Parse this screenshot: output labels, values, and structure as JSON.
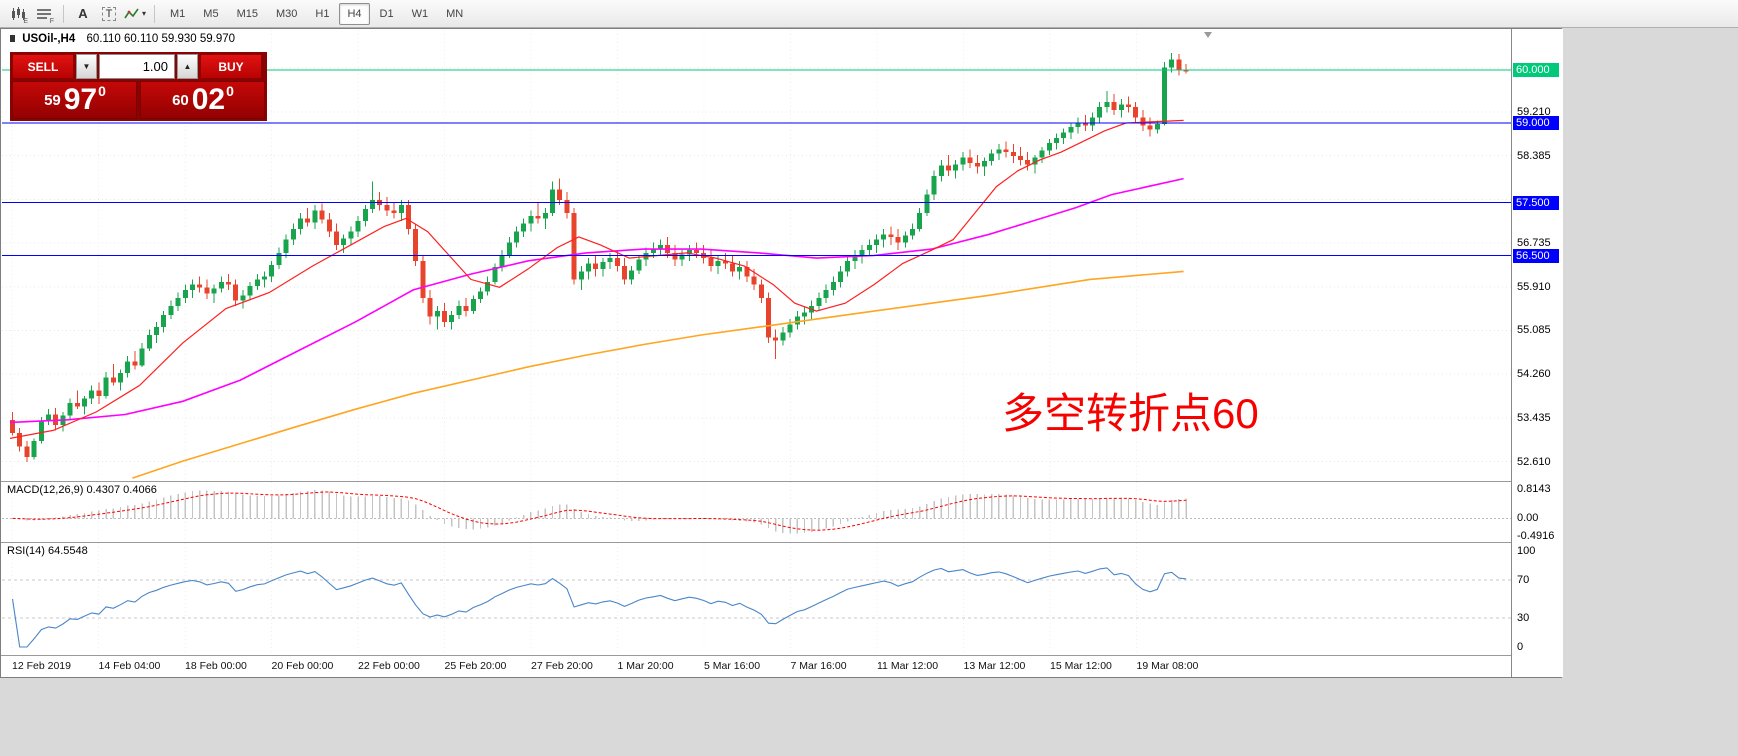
{
  "toolbar": {
    "tools": {
      "expert_label": "E",
      "indicator_label": "F",
      "text_label": "A",
      "textbox_label": "T"
    },
    "icons": {
      "dropdown": "▾",
      "volume_down": "▼",
      "volume_up": "▲"
    },
    "timeframes": [
      "M1",
      "M5",
      "M15",
      "M30",
      "H1",
      "H4",
      "D1",
      "W1",
      "MN"
    ],
    "active_timeframe": "H4"
  },
  "chart": {
    "symbol_header": "USOil-,H4",
    "ohlc_header": "60.110 60.110 59.930 59.970",
    "annotation": "多空转折点60",
    "levels": [
      {
        "label": "60.000",
        "price": 60.0,
        "color": "#00c97a"
      },
      {
        "label": "59.000",
        "price": 59.0,
        "color": "#0000ff"
      },
      {
        "label": "57.500",
        "price": 57.5,
        "color": "#0000ff"
      },
      {
        "label": "56.500",
        "price": 56.5,
        "color": "#0000ff"
      }
    ],
    "price_axis": [
      {
        "text": "59.210",
        "value": 59.21
      },
      {
        "text": "58.385",
        "value": 58.385
      },
      {
        "text": "56.735",
        "value": 56.735
      },
      {
        "text": "55.910",
        "value": 55.91
      },
      {
        "text": "55.085",
        "value": 55.085
      },
      {
        "text": "54.260",
        "value": 54.26
      },
      {
        "text": "53.435",
        "value": 53.435
      },
      {
        "text": "52.610",
        "value": 52.61
      }
    ]
  },
  "trade_panel": {
    "sell_label": "SELL",
    "buy_label": "BUY",
    "volume": "1.00",
    "sell_price": {
      "small": "59",
      "big": "97",
      "sup": "0"
    },
    "buy_price": {
      "small": "60",
      "big": "02",
      "sup": "0"
    }
  },
  "macd": {
    "title": "MACD(12,26,9) 0.4307 0.4066",
    "params": {
      "fast": 12,
      "slow": 26,
      "signal": 9
    },
    "axis_labels": [
      {
        "text": "0.8143",
        "value": 0.8143
      },
      {
        "text": "0.00",
        "value": 0
      },
      {
        "text": "-0.4916",
        "value": -0.4916
      }
    ]
  },
  "rsi": {
    "title": "RSI(14) 64.5548",
    "period": 14,
    "levels": [
      70,
      30
    ],
    "axis_labels": [
      {
        "text": "100",
        "value": 100
      },
      {
        "text": "70",
        "value": 70
      },
      {
        "text": "30",
        "value": 30
      },
      {
        "text": "0",
        "value": 0
      }
    ]
  },
  "time_axis": {
    "labels": [
      "12 Feb 2019",
      "14 Feb 04:00",
      "18 Feb 00:00",
      "20 Feb 00:00",
      "22 Feb 00:00",
      "25 Feb 20:00",
      "27 Feb 20:00",
      "1 Mar 20:00",
      "5 Mar 16:00",
      "7 Mar 16:00",
      "11 Mar 12:00",
      "13 Mar 12:00",
      "15 Mar 12:00",
      "19 Mar 08:00"
    ]
  },
  "chart_data": {
    "type": "candlestick",
    "symbol": "USOil-",
    "timeframe": "H4",
    "ohlc_display": {
      "open": "60.110",
      "high": "60.110",
      "low": "59.930",
      "close": "59.970"
    },
    "colors": {
      "up": "#18a44c",
      "down": "#e8432d",
      "ma_fast": "#ff2020",
      "ma_mid": "#ff00ff",
      "ma_slow": "#ffa520",
      "macd_hist": "#c4c4c4",
      "macd_signal": "#ff0000",
      "rsi_line": "#4a86c8"
    },
    "candles": [
      [
        53.4,
        53.55,
        53.1,
        53.15
      ],
      [
        53.15,
        53.25,
        52.8,
        52.9
      ],
      [
        52.9,
        53.0,
        52.6,
        52.7
      ],
      [
        52.7,
        53.05,
        52.65,
        53.0
      ],
      [
        53.0,
        53.45,
        52.95,
        53.38
      ],
      [
        53.38,
        53.6,
        53.3,
        53.5
      ],
      [
        53.5,
        53.62,
        53.2,
        53.3
      ],
      [
        53.3,
        53.55,
        53.18,
        53.48
      ],
      [
        53.48,
        53.8,
        53.4,
        53.72
      ],
      [
        53.72,
        53.95,
        53.6,
        53.65
      ],
      [
        53.65,
        53.85,
        53.5,
        53.8
      ],
      [
        53.8,
        54.05,
        53.7,
        53.95
      ],
      [
        53.95,
        54.1,
        53.7,
        53.85
      ],
      [
        53.85,
        54.3,
        53.8,
        54.2
      ],
      [
        54.2,
        54.45,
        54.05,
        54.1
      ],
      [
        54.1,
        54.35,
        53.95,
        54.28
      ],
      [
        54.28,
        54.6,
        54.2,
        54.5
      ],
      [
        54.5,
        54.7,
        54.35,
        54.42
      ],
      [
        54.42,
        54.85,
        54.4,
        54.75
      ],
      [
        54.75,
        55.1,
        54.7,
        55.0
      ],
      [
        55.0,
        55.25,
        54.85,
        55.15
      ],
      [
        55.15,
        55.45,
        55.05,
        55.38
      ],
      [
        55.38,
        55.65,
        55.3,
        55.55
      ],
      [
        55.55,
        55.8,
        55.45,
        55.7
      ],
      [
        55.7,
        55.95,
        55.6,
        55.85
      ],
      [
        55.85,
        56.05,
        55.7,
        55.95
      ],
      [
        55.95,
        56.1,
        55.8,
        55.9
      ],
      [
        55.9,
        56.05,
        55.68,
        55.78
      ],
      [
        55.78,
        55.95,
        55.6,
        55.88
      ],
      [
        55.88,
        56.1,
        55.8,
        56.0
      ],
      [
        56.0,
        56.15,
        55.85,
        55.95
      ],
      [
        55.95,
        56.05,
        55.55,
        55.65
      ],
      [
        55.65,
        55.85,
        55.5,
        55.75
      ],
      [
        55.75,
        56.0,
        55.65,
        55.92
      ],
      [
        55.92,
        56.15,
        55.85,
        56.05
      ],
      [
        56.05,
        56.2,
        55.9,
        56.1
      ],
      [
        56.1,
        56.4,
        56.0,
        56.32
      ],
      [
        56.32,
        56.65,
        56.25,
        56.55
      ],
      [
        56.55,
        56.9,
        56.45,
        56.8
      ],
      [
        56.8,
        57.1,
        56.7,
        57.0
      ],
      [
        57.0,
        57.3,
        56.9,
        57.2
      ],
      [
        57.2,
        57.4,
        57.05,
        57.12
      ],
      [
        57.12,
        57.45,
        57.0,
        57.35
      ],
      [
        57.35,
        57.48,
        57.1,
        57.18
      ],
      [
        57.18,
        57.3,
        56.85,
        56.95
      ],
      [
        56.95,
        57.1,
        56.6,
        56.7
      ],
      [
        56.7,
        56.9,
        56.55,
        56.82
      ],
      [
        56.82,
        57.05,
        56.7,
        56.95
      ],
      [
        56.95,
        57.25,
        56.85,
        57.15
      ],
      [
        57.15,
        57.45,
        57.05,
        57.38
      ],
      [
        57.38,
        57.9,
        57.3,
        57.55
      ],
      [
        57.55,
        57.7,
        57.35,
        57.45
      ],
      [
        57.45,
        57.6,
        57.25,
        57.35
      ],
      [
        57.35,
        57.5,
        57.2,
        57.3
      ],
      [
        57.3,
        57.55,
        57.15,
        57.45
      ],
      [
        57.45,
        57.55,
        56.9,
        57.0
      ],
      [
        57.0,
        57.1,
        56.3,
        56.4
      ],
      [
        56.4,
        56.5,
        55.6,
        55.7
      ],
      [
        55.7,
        55.85,
        55.2,
        55.35
      ],
      [
        55.35,
        55.55,
        55.1,
        55.45
      ],
      [
        55.45,
        55.6,
        55.15,
        55.25
      ],
      [
        55.25,
        55.45,
        55.1,
        55.38
      ],
      [
        55.38,
        55.65,
        55.3,
        55.55
      ],
      [
        55.55,
        55.7,
        55.35,
        55.45
      ],
      [
        55.45,
        55.75,
        55.4,
        55.68
      ],
      [
        55.68,
        55.9,
        55.6,
        55.82
      ],
      [
        55.82,
        56.1,
        55.75,
        56.0
      ],
      [
        56.0,
        56.35,
        55.95,
        56.28
      ],
      [
        56.28,
        56.6,
        56.2,
        56.5
      ],
      [
        56.5,
        56.85,
        56.45,
        56.75
      ],
      [
        56.75,
        57.05,
        56.65,
        56.95
      ],
      [
        56.95,
        57.2,
        56.85,
        57.1
      ],
      [
        57.1,
        57.35,
        56.95,
        57.25
      ],
      [
        57.25,
        57.5,
        57.1,
        57.2
      ],
      [
        57.2,
        57.4,
        57.0,
        57.3
      ],
      [
        57.3,
        57.9,
        57.25,
        57.75
      ],
      [
        57.75,
        57.95,
        57.45,
        57.55
      ],
      [
        57.55,
        57.7,
        57.2,
        57.3
      ],
      [
        57.3,
        57.4,
        55.95,
        56.05
      ],
      [
        56.05,
        56.3,
        55.85,
        56.2
      ],
      [
        56.2,
        56.45,
        56.05,
        56.35
      ],
      [
        56.35,
        56.5,
        56.1,
        56.25
      ],
      [
        56.25,
        56.45,
        56.1,
        56.38
      ],
      [
        56.38,
        56.55,
        56.25,
        56.45
      ],
      [
        56.45,
        56.6,
        56.2,
        56.3
      ],
      [
        56.3,
        56.45,
        55.95,
        56.05
      ],
      [
        56.05,
        56.3,
        55.95,
        56.22
      ],
      [
        56.22,
        56.5,
        56.15,
        56.42
      ],
      [
        56.42,
        56.65,
        56.3,
        56.55
      ],
      [
        56.55,
        56.75,
        56.45,
        56.62
      ],
      [
        56.62,
        56.8,
        56.5,
        56.7
      ],
      [
        56.7,
        56.85,
        56.45,
        56.55
      ],
      [
        56.55,
        56.7,
        56.3,
        56.42
      ],
      [
        56.42,
        56.6,
        56.3,
        56.52
      ],
      [
        56.52,
        56.7,
        56.4,
        56.6
      ],
      [
        56.6,
        56.75,
        56.45,
        56.55
      ],
      [
        56.55,
        56.7,
        56.35,
        56.45
      ],
      [
        56.45,
        56.6,
        56.2,
        56.3
      ],
      [
        56.3,
        56.5,
        56.15,
        56.4
      ],
      [
        56.4,
        56.55,
        56.25,
        56.35
      ],
      [
        56.35,
        56.5,
        56.1,
        56.2
      ],
      [
        56.2,
        56.4,
        56.05,
        56.28
      ],
      [
        56.28,
        56.4,
        56.0,
        56.1
      ],
      [
        56.1,
        56.25,
        55.85,
        55.95
      ],
      [
        55.95,
        56.05,
        55.6,
        55.7
      ],
      [
        55.7,
        55.8,
        54.85,
        54.95
      ],
      [
        54.95,
        55.1,
        54.55,
        54.9
      ],
      [
        54.9,
        55.15,
        54.8,
        55.05
      ],
      [
        55.05,
        55.3,
        54.95,
        55.2
      ],
      [
        55.2,
        55.45,
        55.1,
        55.35
      ],
      [
        55.35,
        55.55,
        55.2,
        55.42
      ],
      [
        55.42,
        55.65,
        55.3,
        55.55
      ],
      [
        55.55,
        55.8,
        55.45,
        55.7
      ],
      [
        55.7,
        55.95,
        55.6,
        55.85
      ],
      [
        55.85,
        56.1,
        55.75,
        56.0
      ],
      [
        56.0,
        56.3,
        55.9,
        56.2
      ],
      [
        56.2,
        56.5,
        56.1,
        56.4
      ],
      [
        56.4,
        56.6,
        56.25,
        56.5
      ],
      [
        56.5,
        56.7,
        56.35,
        56.6
      ],
      [
        56.6,
        56.8,
        56.5,
        56.7
      ],
      [
        56.7,
        56.9,
        56.55,
        56.8
      ],
      [
        56.8,
        57.0,
        56.65,
        56.9
      ],
      [
        56.9,
        57.05,
        56.7,
        56.85
      ],
      [
        56.85,
        57.0,
        56.6,
        56.75
      ],
      [
        56.75,
        56.95,
        56.65,
        56.88
      ],
      [
        56.88,
        57.1,
        56.8,
        57.0
      ],
      [
        57.0,
        57.4,
        56.95,
        57.3
      ],
      [
        57.3,
        57.75,
        57.25,
        57.65
      ],
      [
        57.65,
        58.1,
        57.55,
        58.0
      ],
      [
        58.0,
        58.3,
        57.9,
        58.2
      ],
      [
        58.2,
        58.4,
        58.0,
        58.1
      ],
      [
        58.1,
        58.3,
        57.95,
        58.22
      ],
      [
        58.22,
        58.45,
        58.1,
        58.35
      ],
      [
        58.35,
        58.5,
        58.15,
        58.25
      ],
      [
        58.25,
        58.4,
        58.05,
        58.18
      ],
      [
        58.18,
        58.35,
        58.0,
        58.28
      ],
      [
        58.28,
        58.5,
        58.2,
        58.42
      ],
      [
        58.42,
        58.6,
        58.3,
        58.5
      ],
      [
        58.5,
        58.65,
        58.35,
        58.45
      ],
      [
        58.45,
        58.6,
        58.25,
        58.38
      ],
      [
        58.38,
        58.55,
        58.2,
        58.3
      ],
      [
        58.3,
        58.45,
        58.1,
        58.22
      ],
      [
        58.22,
        58.4,
        58.05,
        58.35
      ],
      [
        58.35,
        58.55,
        58.25,
        58.48
      ],
      [
        58.48,
        58.7,
        58.4,
        58.62
      ],
      [
        58.62,
        58.8,
        58.5,
        58.72
      ],
      [
        58.72,
        58.9,
        58.6,
        58.82
      ],
      [
        58.82,
        59.0,
        58.7,
        58.92
      ],
      [
        58.92,
        59.1,
        58.8,
        59.0
      ],
      [
        59.0,
        59.15,
        58.85,
        58.95
      ],
      [
        58.95,
        59.2,
        58.85,
        59.1
      ],
      [
        59.1,
        59.4,
        59.0,
        59.3
      ],
      [
        59.3,
        59.6,
        59.2,
        59.4
      ],
      [
        59.4,
        59.55,
        59.15,
        59.25
      ],
      [
        59.25,
        59.45,
        59.1,
        59.35
      ],
      [
        59.35,
        59.5,
        59.2,
        59.3
      ],
      [
        59.3,
        59.4,
        59.0,
        59.1
      ],
      [
        59.1,
        59.25,
        58.85,
        58.95
      ],
      [
        58.95,
        59.1,
        58.75,
        58.88
      ],
      [
        58.88,
        59.05,
        58.8,
        58.98
      ],
      [
        58.98,
        60.15,
        58.95,
        60.05
      ],
      [
        60.05,
        60.32,
        59.95,
        60.2
      ],
      [
        60.2,
        60.3,
        59.9,
        60.0
      ],
      [
        60.0,
        60.11,
        59.93,
        59.97
      ]
    ],
    "overlays": {
      "ma_fast_red": [
        [
          0,
          53.05
        ],
        [
          6,
          53.2
        ],
        [
          12,
          53.55
        ],
        [
          18,
          54.05
        ],
        [
          24,
          54.85
        ],
        [
          30,
          55.5
        ],
        [
          36,
          55.8
        ],
        [
          42,
          56.3
        ],
        [
          48,
          56.75
        ],
        [
          52,
          57.05
        ],
        [
          55,
          57.2
        ],
        [
          58,
          56.95
        ],
        [
          61,
          56.5
        ],
        [
          64,
          56.05
        ],
        [
          68,
          55.9
        ],
        [
          72,
          56.25
        ],
        [
          76,
          56.65
        ],
        [
          79,
          56.85
        ],
        [
          82,
          56.7
        ],
        [
          86,
          56.45
        ],
        [
          90,
          56.5
        ],
        [
          94,
          56.55
        ],
        [
          98,
          56.45
        ],
        [
          102,
          56.3
        ],
        [
          106,
          55.95
        ],
        [
          109,
          55.6
        ],
        [
          112,
          55.45
        ],
        [
          116,
          55.6
        ],
        [
          120,
          55.95
        ],
        [
          124,
          56.35
        ],
        [
          128,
          56.6
        ],
        [
          131,
          56.8
        ],
        [
          134,
          57.3
        ],
        [
          137,
          57.8
        ],
        [
          140,
          58.1
        ],
        [
          143,
          58.3
        ],
        [
          146,
          58.45
        ],
        [
          149,
          58.65
        ],
        [
          152,
          58.85
        ],
        [
          155,
          59.0
        ],
        [
          163,
          59.05
        ]
      ],
      "ma_mid_magenta": [
        [
          0,
          53.35
        ],
        [
          8,
          53.4
        ],
        [
          16,
          53.5
        ],
        [
          24,
          53.75
        ],
        [
          32,
          54.15
        ],
        [
          40,
          54.7
        ],
        [
          48,
          55.25
        ],
        [
          56,
          55.85
        ],
        [
          64,
          56.15
        ],
        [
          72,
          56.4
        ],
        [
          80,
          56.55
        ],
        [
          88,
          56.62
        ],
        [
          96,
          56.62
        ],
        [
          104,
          56.55
        ],
        [
          112,
          56.45
        ],
        [
          120,
          56.5
        ],
        [
          128,
          56.62
        ],
        [
          136,
          56.9
        ],
        [
          142,
          57.15
        ],
        [
          148,
          57.4
        ],
        [
          153,
          57.65
        ],
        [
          163,
          57.95
        ]
      ],
      "ma_slow_orange": [
        [
          17,
          52.3
        ],
        [
          24,
          52.62
        ],
        [
          32,
          52.95
        ],
        [
          40,
          53.28
        ],
        [
          48,
          53.6
        ],
        [
          56,
          53.9
        ],
        [
          64,
          54.15
        ],
        [
          72,
          54.4
        ],
        [
          80,
          54.62
        ],
        [
          88,
          54.82
        ],
        [
          96,
          55.0
        ],
        [
          104,
          55.15
        ],
        [
          112,
          55.3
        ],
        [
          120,
          55.45
        ],
        [
          128,
          55.6
        ],
        [
          136,
          55.75
        ],
        [
          144,
          55.92
        ],
        [
          150,
          56.05
        ],
        [
          163,
          56.2
        ]
      ]
    }
  }
}
